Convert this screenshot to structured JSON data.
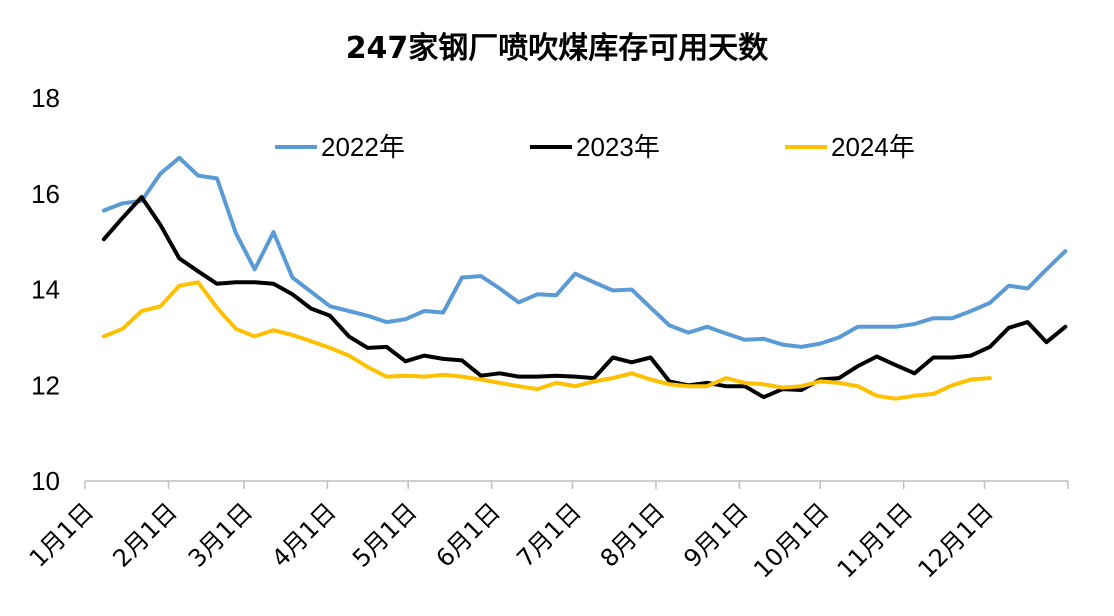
{
  "chart_data": {
    "type": "line",
    "title": "247家钢厂喷吹煤库存可用天数",
    "xlabel": "",
    "ylabel": "",
    "ylim": [
      10,
      18
    ],
    "yticks": [
      "10",
      "12",
      "14",
      "16",
      "18"
    ],
    "grid": false,
    "legend_position": "top",
    "x_tick_labels": [
      "1月1日",
      "2月1日",
      "3月1日",
      "4月1日",
      "5月1日",
      "6月1日",
      "7月1日",
      "8月1日",
      "9月1日",
      "10月1日",
      "11月1日",
      "12月1日"
    ],
    "x_tick_days": [
      1,
      32,
      60,
      91,
      121,
      152,
      182,
      213,
      244,
      274,
      305,
      335
    ],
    "x_range_days": [
      1,
      366
    ],
    "series": [
      {
        "name": "2022年",
        "color": "#5B9BD5",
        "x_days": [
          8,
          15,
          22,
          29,
          36,
          43,
          50,
          57,
          64,
          71,
          78,
          85,
          92,
          99,
          106,
          113,
          120,
          127,
          134,
          141,
          148,
          155,
          162,
          169,
          176,
          183,
          190,
          197,
          204,
          211,
          218,
          225,
          232,
          239,
          246,
          253,
          260,
          267,
          274,
          281,
          288,
          295,
          302,
          309,
          316,
          323,
          330,
          337,
          344,
          351,
          358,
          365
        ],
        "values": [
          15.65,
          15.8,
          15.85,
          16.42,
          16.75,
          16.38,
          16.32,
          15.18,
          14.42,
          15.2,
          14.25,
          13.95,
          13.65,
          13.55,
          13.45,
          13.32,
          13.38,
          13.55,
          13.52,
          14.25,
          14.28,
          14.02,
          13.73,
          13.9,
          13.88,
          14.33,
          14.15,
          13.98,
          14.0,
          13.62,
          13.25,
          13.1,
          13.22,
          13.08,
          12.95,
          12.97,
          12.85,
          12.8,
          12.87,
          13.0,
          13.22,
          13.22,
          13.22,
          13.28,
          13.4,
          13.4,
          13.55,
          13.72,
          14.08,
          14.02,
          14.42,
          14.8
        ]
      },
      {
        "name": "2023年",
        "color": "#000000",
        "x_days": [
          8,
          15,
          22,
          29,
          36,
          43,
          50,
          57,
          64,
          71,
          78,
          85,
          92,
          99,
          106,
          113,
          120,
          127,
          134,
          141,
          148,
          155,
          162,
          169,
          176,
          183,
          190,
          197,
          204,
          211,
          218,
          225,
          232,
          239,
          246,
          253,
          260,
          267,
          274,
          281,
          288,
          295,
          302,
          309,
          316,
          323,
          330,
          337,
          344,
          351,
          358,
          365
        ],
        "values": [
          15.05,
          15.5,
          15.93,
          15.35,
          14.65,
          14.38,
          14.12,
          14.15,
          14.15,
          14.12,
          13.9,
          13.6,
          13.45,
          13.02,
          12.78,
          12.8,
          12.5,
          12.62,
          12.55,
          12.52,
          12.2,
          12.25,
          12.18,
          12.18,
          12.2,
          12.18,
          12.15,
          12.58,
          12.48,
          12.58,
          12.08,
          12.0,
          12.05,
          11.98,
          11.98,
          11.75,
          11.92,
          11.9,
          12.12,
          12.15,
          12.4,
          12.6,
          12.42,
          12.25,
          12.58,
          12.58,
          12.62,
          12.8,
          13.2,
          13.32,
          12.9,
          13.22
        ]
      },
      {
        "name": "2024年",
        "color": "#FFC000",
        "x_days": [
          8,
          15,
          22,
          29,
          36,
          43,
          50,
          57,
          64,
          71,
          78,
          85,
          92,
          99,
          106,
          113,
          120,
          127,
          134,
          141,
          148,
          155,
          162,
          169,
          176,
          183,
          190,
          197,
          204,
          211,
          218,
          225,
          232,
          239,
          246,
          253,
          260,
          267,
          274,
          281,
          288,
          295,
          302,
          309,
          316,
          323,
          330,
          337
        ],
        "values": [
          13.02,
          13.18,
          13.55,
          13.65,
          14.08,
          14.15,
          13.62,
          13.18,
          13.02,
          13.15,
          13.05,
          12.92,
          12.78,
          12.62,
          12.38,
          12.18,
          12.2,
          12.18,
          12.22,
          12.18,
          12.12,
          12.05,
          11.98,
          11.92,
          12.05,
          11.98,
          12.08,
          12.15,
          12.25,
          12.12,
          12.02,
          11.98,
          11.98,
          12.15,
          12.05,
          12.02,
          11.95,
          11.98,
          12.08,
          12.05,
          11.98,
          11.78,
          11.72,
          11.78,
          11.82,
          12.0,
          12.12,
          12.15
        ]
      }
    ]
  }
}
